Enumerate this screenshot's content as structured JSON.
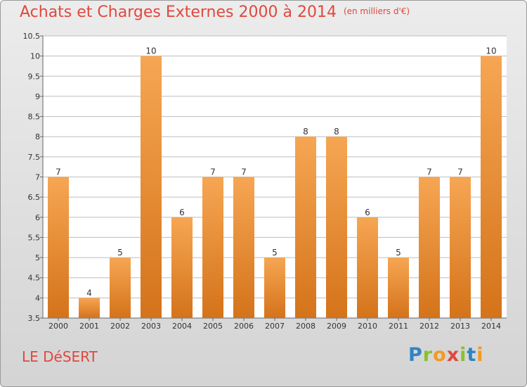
{
  "header": {
    "title": "Achats et Charges Externes 2000 à 2014",
    "unit": "(en milliers d'€)"
  },
  "footer": {
    "place": "LE DéSERT",
    "logo_letters": [
      {
        "ch": "P",
        "color": "#2f84c4"
      },
      {
        "ch": "r",
        "color": "#8bbf2f"
      },
      {
        "ch": "o",
        "color": "#f29a1e"
      },
      {
        "ch": "x",
        "color": "#e0483e"
      },
      {
        "ch": "i",
        "color": "#8bbf2f"
      },
      {
        "ch": "t",
        "color": "#2f84c4"
      },
      {
        "ch": "i",
        "color": "#f29a1e"
      }
    ]
  },
  "colors": {
    "bar_light": "#f6a653",
    "bar_dark": "#d4731a",
    "grid": "#bdbdbd",
    "text": "#333333",
    "accent": "#e0483e"
  },
  "chart_data": {
    "type": "bar",
    "categories": [
      "2000",
      "2001",
      "2002",
      "2003",
      "2004",
      "2005",
      "2006",
      "2007",
      "2008",
      "2009",
      "2010",
      "2011",
      "2012",
      "2013",
      "2014"
    ],
    "values": [
      7,
      4,
      5,
      10,
      6,
      7,
      7,
      5,
      8,
      8,
      6,
      5,
      7,
      7,
      10
    ],
    "data_labels": [
      "7",
      "4",
      "5",
      "10",
      "6",
      "7",
      "7",
      "5",
      "8",
      "8",
      "6",
      "5",
      "7",
      "7",
      "10"
    ],
    "y_ticks": [
      "3.5",
      "4",
      "4.5",
      "5",
      "5.5",
      "6",
      "6.5",
      "7",
      "7.5",
      "8",
      "8.5",
      "9",
      "9.5",
      "10",
      "10.5"
    ],
    "ylim": [
      3.5,
      10.5
    ],
    "grid": true
  }
}
